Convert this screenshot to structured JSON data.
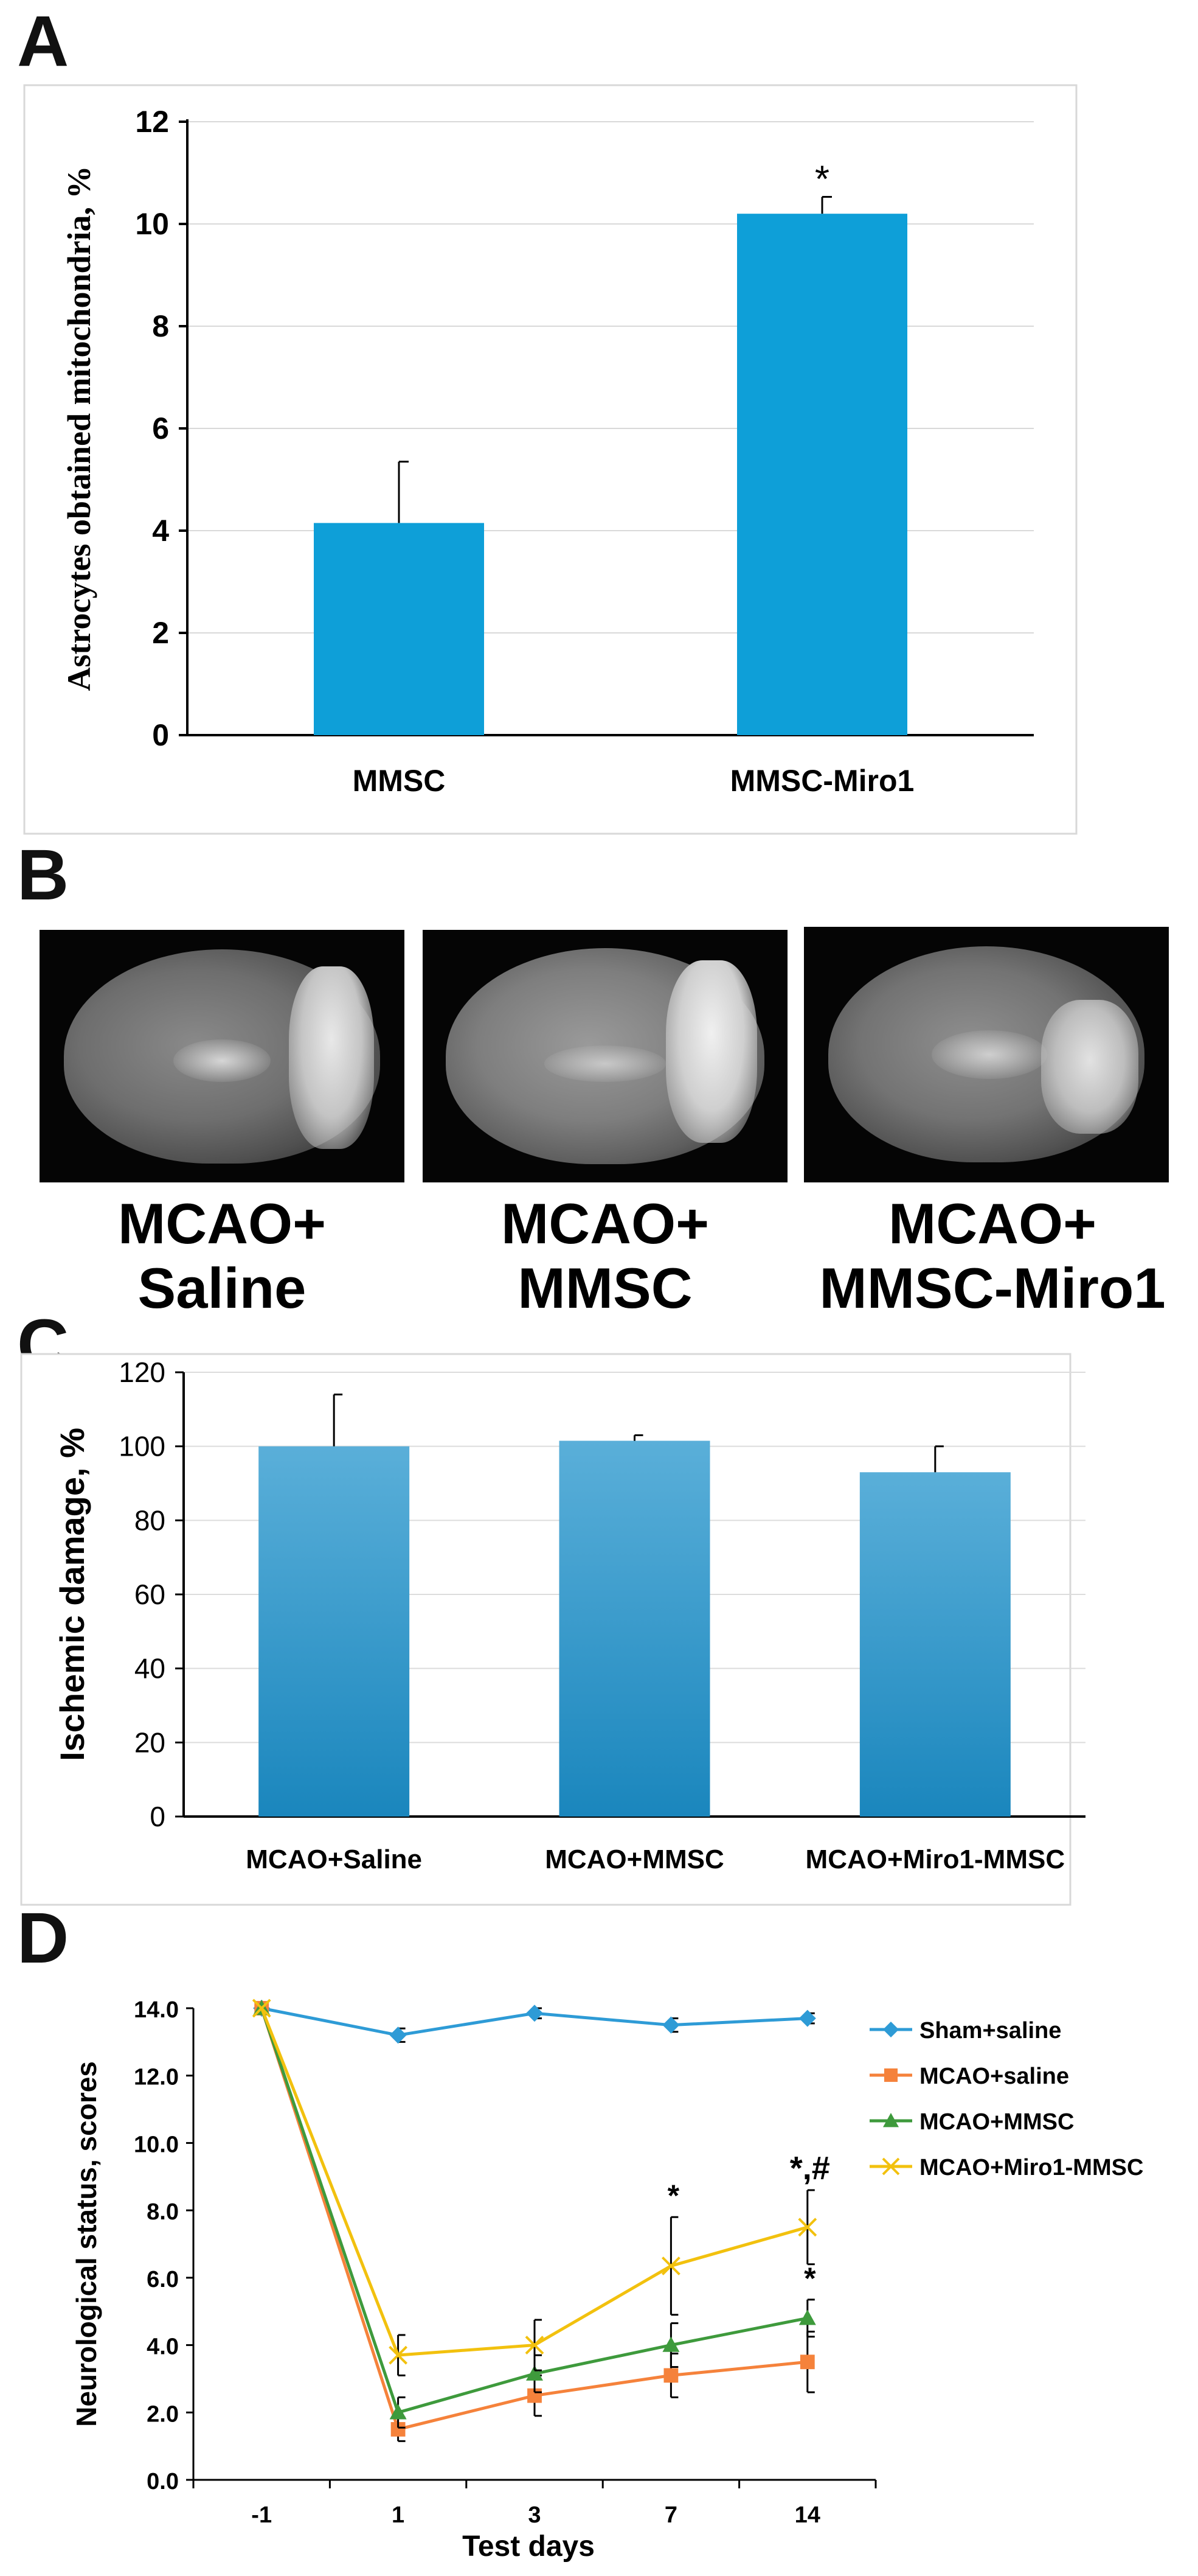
{
  "panel_labels": {
    "a": "A",
    "b": "B",
    "c": "C",
    "d": "D"
  },
  "panel_b": {
    "captions": [
      {
        "line1": "MCAO+",
        "line2": "Saline"
      },
      {
        "line1": "MCAO+",
        "line2": "MMSC"
      },
      {
        "line1": "MCAO+",
        "line2": "MMSC-Miro1"
      }
    ]
  },
  "chart_data": [
    {
      "panel": "A",
      "type": "bar",
      "title": "",
      "xlabel": "",
      "ylabel": "Astrocytes obtained mitochondria, %",
      "categories": [
        "MMSC",
        "MMSC-Miro1"
      ],
      "values": [
        4.15,
        10.2
      ],
      "errors": [
        1.2,
        0.33
      ],
      "significance": [
        "",
        "*"
      ],
      "ylim": [
        0,
        12
      ],
      "yticks": [
        "0",
        "2",
        "4",
        "6",
        "8",
        "10",
        "12"
      ],
      "grid": true,
      "bar_color": "#0e9fd8"
    },
    {
      "panel": "C",
      "type": "bar",
      "title": "",
      "xlabel": "",
      "ylabel": "Ischemic damage, %",
      "categories": [
        "MCAO+Saline",
        "MCAO+MMSC",
        "MCAO+Miro1-MMSC"
      ],
      "values": [
        100,
        101.5,
        93
      ],
      "errors": [
        14,
        1.5,
        7
      ],
      "ylim": [
        0,
        120
      ],
      "yticks": [
        "0",
        "20",
        "40",
        "60",
        "80",
        "100",
        "120"
      ],
      "grid": true,
      "bar_color_top": "#5aafd9",
      "bar_color_bottom": "#1a86bd"
    },
    {
      "panel": "D",
      "type": "line",
      "title": "",
      "xlabel": "Test days",
      "ylabel": "Neurological status, scores",
      "categories": [
        "-1",
        "1",
        "3",
        "7",
        "14"
      ],
      "ylim": [
        0,
        14
      ],
      "yticks": [
        "0.0",
        "2.0",
        "4.0",
        "6.0",
        "8.0",
        "10.0",
        "12.0",
        "14.0"
      ],
      "legend_position": "right",
      "series": [
        {
          "name": "Sham+saline",
          "color": "#2e9bd6",
          "marker": "diamond",
          "values": [
            14.0,
            13.2,
            13.85,
            13.5,
            13.7
          ],
          "errors": [
            0,
            0.2,
            0.15,
            0.2,
            0.15
          ]
        },
        {
          "name": "MCAO+saline",
          "color": "#f5823b",
          "marker": "square",
          "values": [
            14.0,
            1.5,
            2.5,
            3.1,
            3.5
          ],
          "errors": [
            0,
            0.35,
            0.6,
            0.65,
            0.9
          ]
        },
        {
          "name": "MCAO+MMSC",
          "color": "#3e9a3c",
          "marker": "triangle",
          "values": [
            14.0,
            2.0,
            3.15,
            4.0,
            4.8
          ],
          "errors": [
            0,
            0.45,
            0.55,
            0.65,
            0.55
          ]
        },
        {
          "name": "MCAO+Miro1-MMSC",
          "color": "#f2c10e",
          "marker": "x",
          "values": [
            14.0,
            3.7,
            4.0,
            6.35,
            7.5
          ],
          "errors": [
            0,
            0.6,
            0.75,
            1.45,
            1.1
          ]
        }
      ],
      "annotations": [
        {
          "text": "*",
          "x": "7",
          "series": "MCAO+Miro1-MMSC"
        },
        {
          "text": "*,#",
          "x": "14",
          "series": "MCAO+Miro1-MMSC"
        },
        {
          "text": "*",
          "x": "14",
          "series": "MCAO+MMSC"
        }
      ]
    }
  ]
}
